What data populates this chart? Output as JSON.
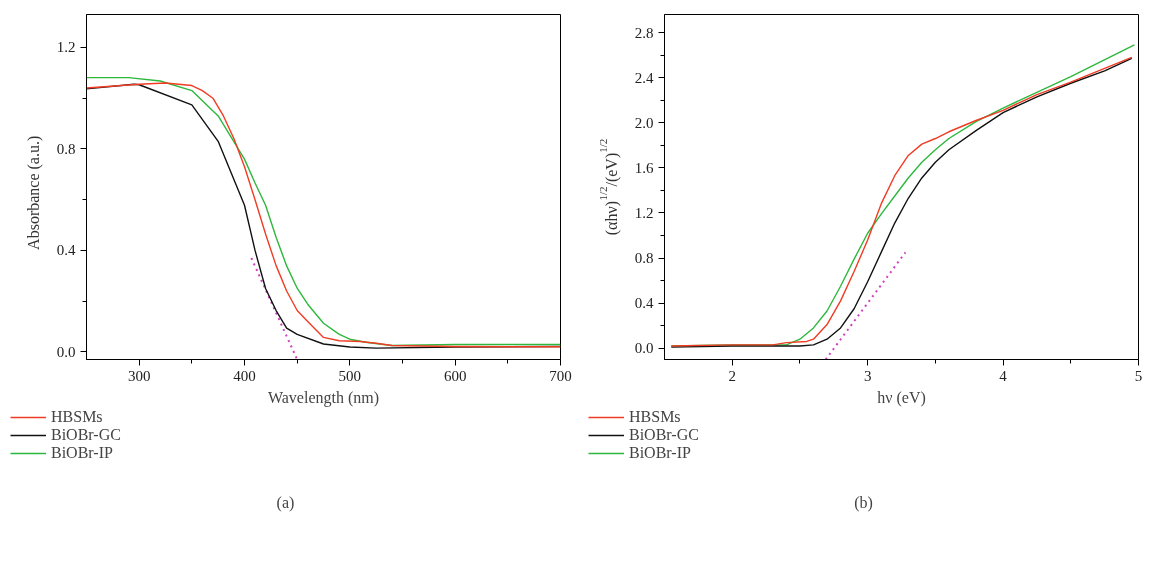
{
  "chart_data": [
    {
      "type": "line",
      "xlabel": "Wavelength (nm)",
      "ylabel": "Absorbance (a.u.)",
      "annotations": [
        "(a)"
      ],
      "xlim": [
        250,
        700
      ],
      "ylim": [
        -0.03,
        1.33
      ],
      "xticks": [
        300,
        {
          "value": 350,
          "label": null
        },
        400,
        {
          "value": 450,
          "label": null
        },
        500,
        {
          "value": 550,
          "label": null
        },
        600,
        {
          "value": 650,
          "label": null
        },
        700
      ],
      "yticks": [
        {
          "value": 0,
          "label": "0.0"
        },
        {
          "value": 0.2,
          "label": null
        },
        {
          "value": 0.4,
          "label": "0.4"
        },
        {
          "value": 0.6,
          "label": null
        },
        {
          "value": 0.8,
          "label": "0.8"
        },
        {
          "value": 1.0,
          "label": null
        },
        {
          "value": 1.2,
          "label": "1.2"
        }
      ],
      "grid": false,
      "legend": "bottom",
      "marker": "none",
      "line_style": "solid",
      "series": [
        {
          "name": "HBSMs",
          "color": "#f03c24",
          "x": [
            250,
            300,
            325,
            350,
            360,
            370,
            380,
            390,
            400,
            410,
            420,
            430,
            440,
            450,
            460,
            475,
            490,
            510,
            525,
            540,
            600,
            700
          ],
          "values": [
            1.04,
            1.055,
            1.06,
            1.05,
            1.03,
            1.0,
            0.93,
            0.84,
            0.73,
            0.6,
            0.465,
            0.34,
            0.24,
            0.163,
            0.12,
            0.057,
            0.044,
            0.041,
            0.034,
            0.025,
            0.021,
            0.02
          ]
        },
        {
          "name": "BiOBr-GC",
          "color": "#111111",
          "x": [
            250,
            295,
            300,
            350,
            375,
            400,
            410,
            420,
            430,
            440,
            450,
            475,
            500,
            525,
            600,
            700
          ],
          "values": [
            1.037,
            1.055,
            1.053,
            0.974,
            0.83,
            0.578,
            0.4,
            0.25,
            0.163,
            0.094,
            0.069,
            0.031,
            0.019,
            0.015,
            0.019,
            0.021
          ]
        },
        {
          "name": "BiOBr-IP",
          "color": "#2db83d",
          "x": [
            250,
            290,
            320,
            350,
            375,
            400,
            410,
            420,
            430,
            440,
            450,
            460,
            475,
            490,
            500,
            515,
            540,
            600,
            700
          ],
          "values": [
            1.081,
            1.081,
            1.068,
            1.03,
            0.93,
            0.76,
            0.666,
            0.578,
            0.452,
            0.339,
            0.251,
            0.188,
            0.113,
            0.069,
            0.05,
            0.038,
            0.025,
            0.029,
            0.029
          ]
        },
        {
          "type": "line",
          "line_style": "dotted",
          "color": "#d040c0",
          "x": [
            406.5,
            450
          ],
          "values": [
            0.37,
            -0.03
          ]
        }
      ]
    },
    {
      "type": "line",
      "xlabel": "hν (eV)",
      "ylabel": "(αhν)$^{1/2}$/(eV)$^{1/2}$",
      "annotations": [
        "(b)"
      ],
      "xlim": [
        1.5,
        5
      ],
      "ylim": [
        -0.1,
        2.96
      ],
      "xticks": [
        2,
        {
          "value": 2.5,
          "label": null
        },
        3,
        {
          "value": 3.5,
          "label": null
        },
        4,
        {
          "value": 4.5,
          "label": null
        },
        5
      ],
      "yticks": [
        {
          "value": 0,
          "label": "0.0"
        },
        {
          "value": 0.2,
          "label": null
        },
        {
          "value": 0.4,
          "label": "0.4"
        },
        {
          "value": 0.6,
          "label": null
        },
        {
          "value": 0.8,
          "label": "0.8"
        },
        {
          "value": 1.0,
          "label": null
        },
        {
          "value": 1.2,
          "label": "1.2"
        },
        {
          "value": 1.4,
          "label": null
        },
        {
          "value": 1.6,
          "label": "1.6"
        },
        {
          "value": 1.8,
          "label": null
        },
        {
          "value": 2.0,
          "label": "2.0"
        },
        {
          "value": 2.2,
          "label": null
        },
        {
          "value": 2.4,
          "label": "2.4"
        },
        {
          "value": 2.6,
          "label": null
        },
        {
          "value": 2.8,
          "label": "2.8"
        }
      ],
      "grid": false,
      "legend": "bottom",
      "marker": "none",
      "line_style": "solid",
      "series": [
        {
          "name": "HBSMs",
          "color": "#f03c24",
          "x": [
            1.55,
            2.0,
            2.3,
            2.4,
            2.55,
            2.6,
            2.7,
            2.8,
            2.9,
            3.0,
            3.1,
            3.2,
            3.3,
            3.4,
            3.5,
            3.6,
            3.8,
            4.0,
            4.25,
            4.5,
            4.95
          ],
          "values": [
            0.02,
            0.03,
            0.03,
            0.05,
            0.06,
            0.08,
            0.21,
            0.42,
            0.68,
            0.96,
            1.28,
            1.53,
            1.71,
            1.81,
            1.86,
            1.92,
            2.02,
            2.11,
            2.25,
            2.36,
            2.58
          ]
        },
        {
          "name": "BiOBr-GC",
          "color": "#111111",
          "x": [
            1.55,
            2.0,
            2.5,
            2.6,
            2.7,
            2.8,
            2.9,
            3.0,
            3.1,
            3.2,
            3.3,
            3.4,
            3.5,
            3.6,
            3.8,
            4.0,
            4.25,
            4.5,
            4.75,
            4.95
          ],
          "values": [
            0.01,
            0.02,
            0.02,
            0.03,
            0.08,
            0.18,
            0.35,
            0.59,
            0.85,
            1.11,
            1.33,
            1.51,
            1.65,
            1.76,
            1.93,
            2.09,
            2.23,
            2.35,
            2.46,
            2.57
          ]
        },
        {
          "name": "BiOBr-IP",
          "color": "#2db83d",
          "x": [
            1.55,
            2.0,
            2.4,
            2.5,
            2.6,
            2.7,
            2.8,
            2.9,
            3.0,
            3.1,
            3.2,
            3.3,
            3.4,
            3.5,
            3.6,
            3.8,
            4.0,
            4.5,
            4.97
          ],
          "values": [
            0.02,
            0.03,
            0.03,
            0.08,
            0.18,
            0.33,
            0.55,
            0.79,
            1.02,
            1.19,
            1.35,
            1.51,
            1.65,
            1.76,
            1.86,
            2.01,
            2.13,
            2.41,
            2.69
          ]
        },
        {
          "type": "line",
          "line_style": "dotted",
          "color": "#d040c0",
          "x": [
            2.69,
            3.279
          ],
          "values": [
            -0.1,
            0.85
          ]
        }
      ]
    }
  ]
}
